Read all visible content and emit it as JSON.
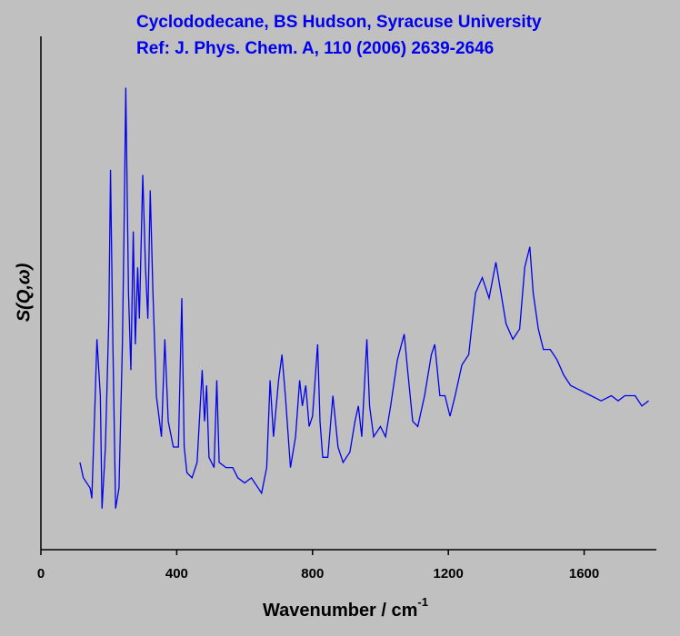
{
  "chart_data": {
    "type": "line",
    "title": [
      "Cyclododecane, BS Hudson, Syracuse University",
      "Ref: J. Phys. Chem. A, 110 (2006) 2639-2646"
    ],
    "x_label": "Wavenumber / cm",
    "x_label_superscript": "-1",
    "y_label": "S(Q,ω)",
    "xlim": [
      0,
      1810
    ],
    "xticks": [
      0,
      400,
      800,
      1200,
      1600
    ],
    "ylim": [
      0,
      100
    ],
    "series": [
      {
        "color": "#0000ee",
        "x": [
          115,
          125,
          135,
          145,
          150,
          160,
          165,
          175,
          180,
          190,
          200,
          205,
          212,
          220,
          230,
          240,
          245,
          250,
          258,
          265,
          272,
          278,
          285,
          290,
          300,
          308,
          315,
          322,
          330,
          340,
          355,
          365,
          375,
          390,
          405,
          415,
          422,
          430,
          445,
          460,
          475,
          482,
          488,
          495,
          510,
          518,
          525,
          545,
          565,
          580,
          600,
          620,
          640,
          650,
          665,
          675,
          685,
          700,
          710,
          720,
          735,
          750,
          762,
          770,
          780,
          790,
          800,
          815,
          822,
          830,
          845,
          860,
          875,
          890,
          910,
          925,
          935,
          945,
          960,
          968,
          980,
          1000,
          1015,
          1030,
          1050,
          1070,
          1080,
          1095,
          1110,
          1130,
          1150,
          1160,
          1175,
          1190,
          1205,
          1220,
          1240,
          1260,
          1280,
          1300,
          1320,
          1340,
          1355,
          1370,
          1390,
          1410,
          1425,
          1440,
          1450,
          1465,
          1480,
          1500,
          1520,
          1540,
          1560,
          1590,
          1620,
          1650,
          1680,
          1700,
          1720,
          1750,
          1770,
          1790
        ],
        "values": [
          17,
          14,
          13,
          12,
          10,
          30,
          41,
          30,
          8,
          20,
          45,
          74,
          40,
          8,
          12,
          40,
          63,
          90,
          50,
          35,
          62,
          40,
          55,
          45,
          73,
          55,
          45,
          70,
          50,
          30,
          22,
          41,
          25,
          20,
          20,
          49,
          20,
          15,
          14,
          17,
          35,
          25,
          32,
          18,
          16,
          33,
          17,
          16,
          16,
          14,
          13,
          14,
          12,
          11,
          16,
          33,
          22,
          33,
          38,
          30,
          16,
          22,
          33,
          28,
          32,
          24,
          26,
          40,
          25,
          18,
          18,
          30,
          20,
          17,
          19,
          25,
          28,
          22,
          41,
          28,
          22,
          24,
          22,
          28,
          37,
          42,
          35,
          25,
          24,
          30,
          38,
          40,
          30,
          30,
          26,
          30,
          36,
          38,
          50,
          53,
          49,
          56,
          50,
          44,
          41,
          43,
          55,
          59,
          50,
          43,
          39,
          39,
          37,
          34,
          32,
          31,
          30,
          29,
          30,
          29,
          30,
          30,
          28,
          29
        ]
      }
    ]
  }
}
